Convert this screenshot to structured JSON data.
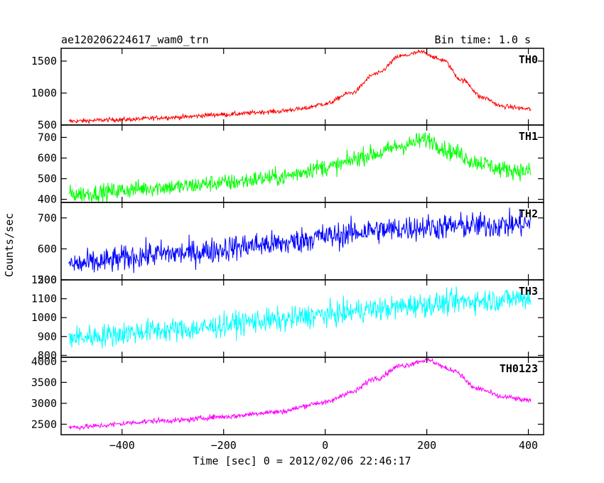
{
  "header": {
    "title": "ae120206224617_wam0_trn",
    "bin_time": "Bin time: 1.0 s"
  },
  "chart_data": {
    "type": "line",
    "xlabel": "Time [sec] 0 = 2012/02/06 22:46:17",
    "ylabel": "Counts/sec",
    "xlim": [
      -520,
      430
    ],
    "x_ticks": [
      {
        "value": -400,
        "label": "−400"
      },
      {
        "value": -200,
        "label": "−200"
      },
      {
        "value": 0,
        "label": "0"
      },
      {
        "value": 200,
        "label": "200"
      },
      {
        "value": 400,
        "label": "400"
      }
    ],
    "x_range": [
      -505,
      405
    ],
    "panels": [
      {
        "name": "TH0",
        "color": "#ff0000",
        "ylim": [
          500,
          1700
        ],
        "yticks": [
          500,
          1000,
          1500
        ],
        "noise": 25,
        "profile": [
          [
            -505,
            560
          ],
          [
            -400,
            585
          ],
          [
            -300,
            620
          ],
          [
            -200,
            665
          ],
          [
            -100,
            710
          ],
          [
            -50,
            750
          ],
          [
            0,
            830
          ],
          [
            50,
            1000
          ],
          [
            100,
            1300
          ],
          [
            150,
            1580
          ],
          [
            190,
            1640
          ],
          [
            230,
            1520
          ],
          [
            270,
            1200
          ],
          [
            310,
            930
          ],
          [
            350,
            790
          ],
          [
            405,
            750
          ]
        ]
      },
      {
        "name": "TH1",
        "color": "#00ff00",
        "ylim": [
          385,
          760
        ],
        "yticks": [
          400,
          500,
          600,
          700
        ],
        "noise": 30,
        "profile": [
          [
            -505,
            425
          ],
          [
            -300,
            460
          ],
          [
            -200,
            480
          ],
          [
            -100,
            505
          ],
          [
            0,
            555
          ],
          [
            100,
            620
          ],
          [
            150,
            660
          ],
          [
            200,
            690
          ],
          [
            250,
            630
          ],
          [
            300,
            580
          ],
          [
            350,
            545
          ],
          [
            405,
            535
          ]
        ]
      },
      {
        "name": "TH2",
        "color": "#0000ff",
        "ylim": [
          500,
          750
        ],
        "yticks": [
          500,
          600,
          700
        ],
        "noise": 30,
        "profile": [
          [
            -505,
            550
          ],
          [
            -300,
            585
          ],
          [
            -100,
            615
          ],
          [
            0,
            640
          ],
          [
            100,
            660
          ],
          [
            200,
            670
          ],
          [
            300,
            675
          ],
          [
            405,
            680
          ]
        ]
      },
      {
        "name": "TH3",
        "color": "#00ffff",
        "ylim": [
          790,
          1200
        ],
        "yticks": [
          800,
          900,
          1000,
          1100,
          1200
        ],
        "noise": 45,
        "profile": [
          [
            -505,
            895
          ],
          [
            -300,
            935
          ],
          [
            -100,
            985
          ],
          [
            0,
            1015
          ],
          [
            100,
            1045
          ],
          [
            200,
            1070
          ],
          [
            300,
            1090
          ],
          [
            405,
            1105
          ]
        ]
      },
      {
        "name": "TH0123",
        "color": "#ff00ff",
        "ylim": [
          2250,
          4100
        ],
        "yticks": [
          2500,
          3000,
          3500,
          4000
        ],
        "noise": 45,
        "profile": [
          [
            -505,
            2430
          ],
          [
            -300,
            2590
          ],
          [
            -200,
            2680
          ],
          [
            -100,
            2790
          ],
          [
            0,
            3020
          ],
          [
            50,
            3260
          ],
          [
            100,
            3600
          ],
          [
            150,
            3900
          ],
          [
            200,
            4030
          ],
          [
            250,
            3800
          ],
          [
            300,
            3350
          ],
          [
            350,
            3150
          ],
          [
            405,
            3060
          ]
        ]
      }
    ]
  }
}
